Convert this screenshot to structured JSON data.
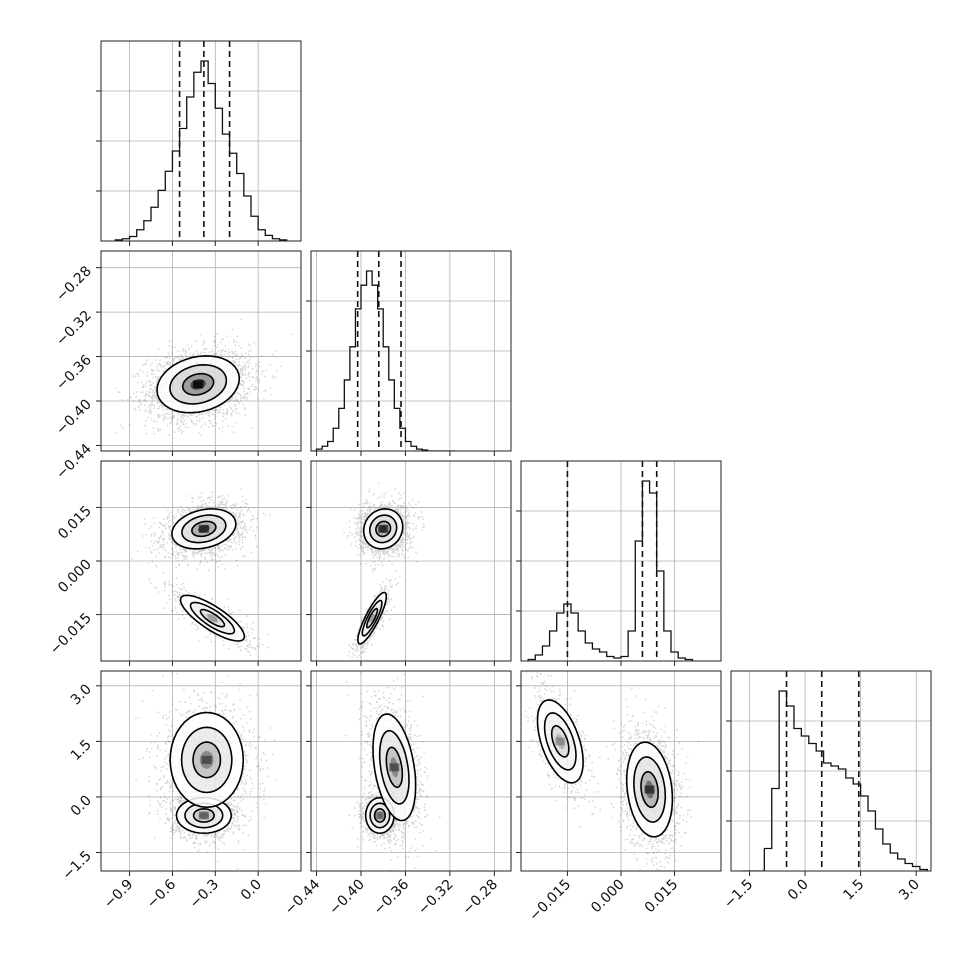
{
  "chart_data": {
    "type": "corner",
    "title": "",
    "parameters": [
      {
        "index": 0,
        "range": [
          -1.1,
          0.3
        ],
        "ticks": [
          -0.9,
          -0.6,
          -0.3,
          0.0
        ],
        "tick_labels": [
          "−0.9",
          "−0.6",
          "−0.3",
          "0.0"
        ],
        "quantiles": [
          -0.55,
          -0.38,
          -0.2
        ],
        "histogram": {
          "bin_edges": [
            -1.0,
            -0.95,
            -0.9,
            -0.85,
            -0.8,
            -0.75,
            -0.7,
            -0.65,
            -0.6,
            -0.55,
            -0.5,
            -0.45,
            -0.4,
            -0.35,
            -0.3,
            -0.25,
            -0.2,
            -0.15,
            -0.1,
            -0.05,
            0.0,
            0.05,
            0.1,
            0.15,
            0.2
          ],
          "counts": [
            1,
            2,
            4,
            10,
            18,
            30,
            45,
            62,
            80,
            100,
            128,
            150,
            160,
            140,
            118,
            95,
            78,
            60,
            40,
            22,
            10,
            5,
            2,
            1
          ]
        }
      },
      {
        "index": 1,
        "range": [
          -0.445,
          -0.265
        ],
        "ticks": [
          -0.44,
          -0.4,
          -0.36,
          -0.32,
          -0.28
        ],
        "tick_labels": [
          "−0.44",
          "−0.40",
          "−0.36",
          "−0.32",
          "−0.28"
        ],
        "quantiles": [
          -0.403,
          -0.384,
          -0.364
        ],
        "histogram": {
          "bin_edges": [
            -0.445,
            -0.44,
            -0.435,
            -0.43,
            -0.425,
            -0.42,
            -0.415,
            -0.41,
            -0.405,
            -0.4,
            -0.395,
            -0.39,
            -0.385,
            -0.38,
            -0.375,
            -0.37,
            -0.365,
            -0.36,
            -0.355,
            -0.35,
            -0.345,
            -0.34,
            -0.335,
            -0.33,
            -0.325,
            -0.32,
            -0.315
          ],
          "counts": [
            0,
            2,
            5,
            10,
            24,
            45,
            75,
            110,
            150,
            175,
            190,
            175,
            150,
            110,
            75,
            45,
            24,
            10,
            5,
            2,
            1,
            0,
            0,
            0,
            0,
            0
          ]
        }
      },
      {
        "index": 2,
        "range": [
          -0.028,
          0.028
        ],
        "ticks": [
          -0.015,
          0.0,
          0.015
        ],
        "tick_labels": [
          "−0.015",
          "0.000",
          "0.015"
        ],
        "quantiles": [
          -0.015,
          0.006,
          0.01
        ],
        "histogram": {
          "bin_edges": [
            -0.026,
            -0.024,
            -0.022,
            -0.02,
            -0.018,
            -0.016,
            -0.014,
            -0.012,
            -0.01,
            -0.008,
            -0.006,
            -0.004,
            -0.002,
            0.0,
            0.002,
            0.004,
            0.006,
            0.008,
            0.01,
            0.012,
            0.014,
            0.016,
            0.018,
            0.02
          ],
          "counts": [
            1,
            4,
            10,
            20,
            32,
            38,
            32,
            20,
            12,
            8,
            6,
            3,
            2,
            3,
            20,
            80,
            120,
            112,
            60,
            20,
            6,
            2,
            1
          ]
        }
      },
      {
        "index": 3,
        "range": [
          -2.0,
          3.4
        ],
        "ticks": [
          -1.5,
          0.0,
          1.5,
          3.0
        ],
        "tick_labels": [
          "−1.5",
          "0.0",
          "1.5",
          "3.0"
        ],
        "quantiles": [
          -0.5,
          0.45,
          1.45
        ],
        "histogram": {
          "bin_edges": [
            -1.7,
            -1.5,
            -1.3,
            -1.1,
            -0.9,
            -0.7,
            -0.5,
            -0.3,
            -0.1,
            0.1,
            0.3,
            0.5,
            0.7,
            0.9,
            1.1,
            1.3,
            1.5,
            1.7,
            1.9,
            2.1,
            2.3,
            2.5,
            2.7,
            2.9,
            3.1,
            3.3
          ],
          "counts": [
            0,
            0,
            0,
            15,
            55,
            120,
            110,
            95,
            90,
            85,
            80,
            72,
            70,
            68,
            62,
            58,
            50,
            40,
            28,
            18,
            12,
            8,
            5,
            3,
            1
          ]
        }
      }
    ],
    "pairs": [
      {
        "x": 0,
        "y": 1,
        "clusters": [
          {
            "cx": -0.42,
            "cy": -0.385,
            "sx": 0.18,
            "sy": 0.016,
            "rho": 0.2,
            "weight": 1.0
          }
        ]
      },
      {
        "x": 0,
        "y": 2,
        "clusters": [
          {
            "cx": -0.38,
            "cy": 0.009,
            "sx": 0.14,
            "sy": 0.0035,
            "rho": 0.25,
            "weight": 0.75
          },
          {
            "cx": -0.32,
            "cy": -0.016,
            "sx": 0.14,
            "sy": 0.004,
            "rho": -0.8,
            "weight": 0.25
          }
        ]
      },
      {
        "x": 1,
        "y": 2,
        "clusters": [
          {
            "cx": -0.38,
            "cy": 0.009,
            "sx": 0.011,
            "sy": 0.0035,
            "rho": 0.1,
            "weight": 0.75
          },
          {
            "cx": -0.39,
            "cy": -0.016,
            "sx": 0.008,
            "sy": 0.0045,
            "rho": 0.85,
            "weight": 0.25
          }
        ]
      },
      {
        "x": 0,
        "y": 3,
        "clusters": [
          {
            "cx": -0.38,
            "cy": -0.5,
            "sx": 0.12,
            "sy": 0.3,
            "rho": 0.0,
            "weight": 0.45
          },
          {
            "cx": -0.36,
            "cy": 1.0,
            "sx": 0.16,
            "sy": 0.8,
            "rho": 0.0,
            "weight": 0.55
          }
        ]
      },
      {
        "x": 1,
        "y": 3,
        "clusters": [
          {
            "cx": -0.383,
            "cy": -0.5,
            "sx": 0.008,
            "sy": 0.3,
            "rho": 0.0,
            "weight": 0.45
          },
          {
            "cx": -0.37,
            "cy": 0.8,
            "sx": 0.012,
            "sy": 0.9,
            "rho": -0.35,
            "weight": 0.55
          }
        ]
      },
      {
        "x": 2,
        "y": 3,
        "clusters": [
          {
            "cx": -0.017,
            "cy": 1.5,
            "sx": 0.004,
            "sy": 0.7,
            "rho": -0.5,
            "weight": 0.3
          },
          {
            "cx": 0.008,
            "cy": 0.2,
            "sx": 0.004,
            "sy": 0.8,
            "rho": -0.2,
            "weight": 0.7
          }
        ]
      }
    ],
    "contour_levels": [
      "1-sigma",
      "1.5-sigma",
      "2-sigma"
    ],
    "grid": true,
    "colors": {
      "line": "#000000",
      "scatter": "#333333",
      "density": "#000000",
      "grid": "#b0b0b0"
    }
  }
}
